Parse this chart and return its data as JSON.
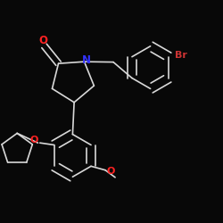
{
  "background_color": "#080808",
  "bond_color": "#d8d8d8",
  "bond_width": 1.2,
  "atom_colors": {
    "O": "#ff2222",
    "N": "#3333ff",
    "Br": "#cc3333",
    "C": "#d8d8d8"
  },
  "figsize": [
    2.5,
    2.5
  ],
  "dpi": 100
}
